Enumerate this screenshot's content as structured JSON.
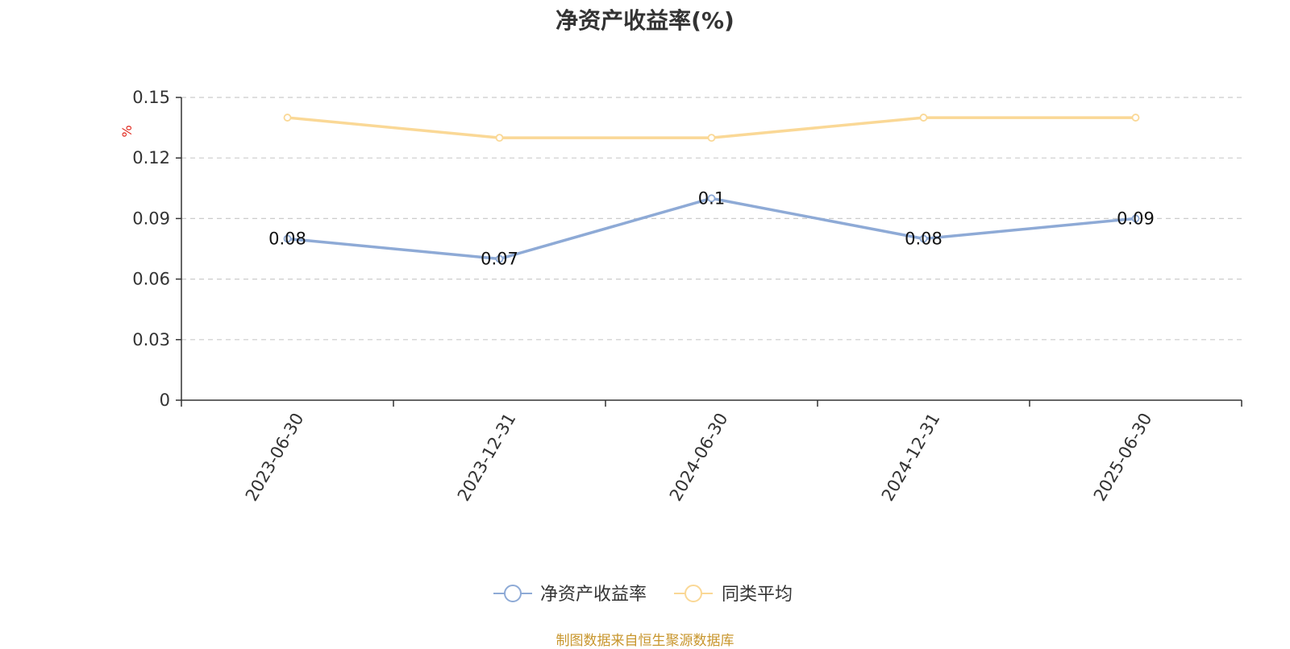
{
  "chart_data": {
    "type": "line",
    "title": "净资产收益率(%)",
    "ylabel": "%",
    "categories": [
      "2023-06-30",
      "2023-12-31",
      "2024-06-30",
      "2024-12-31",
      "2025-06-30"
    ],
    "ylim": [
      0,
      0.15
    ],
    "yticks": [
      "0",
      "0.03",
      "0.06",
      "0.09",
      "0.12",
      "0.15"
    ],
    "grid": true,
    "legend_position": "bottom",
    "series": [
      {
        "name": "净资产收益率",
        "values": [
          0.08,
          0.07,
          0.1,
          0.08,
          0.09
        ],
        "color": "#8eaad6",
        "show_labels": true
      },
      {
        "name": "同类平均",
        "values": [
          0.14,
          0.13,
          0.13,
          0.14,
          0.14
        ],
        "color": "#fad896",
        "show_labels": false
      }
    ]
  },
  "source_note": "制图数据来自恒生聚源数据库"
}
